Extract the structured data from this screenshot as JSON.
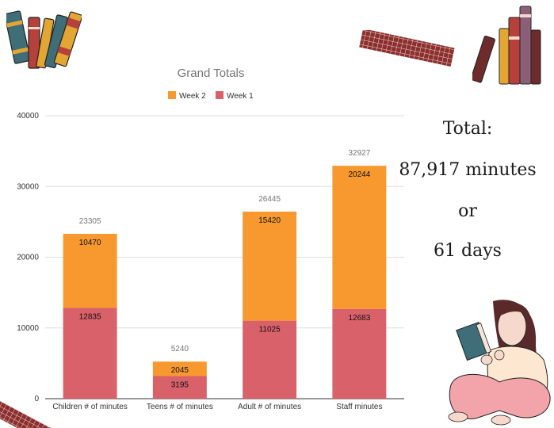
{
  "chart_data": {
    "type": "bar",
    "stacked": true,
    "title": "Grand Totals",
    "categories": [
      "Children # of minutes",
      "Teens # of minutes",
      "Adult # of minutes",
      "Staff minutes"
    ],
    "series": [
      {
        "name": "Week 1",
        "values": [
          12835,
          3195,
          11025,
          12683
        ],
        "color": "#d9616a"
      },
      {
        "name": "Week 2",
        "values": [
          10470,
          2045,
          15420,
          20244
        ],
        "color": "#f7992f"
      }
    ],
    "totals": [
      23305,
      5240,
      26445,
      32927
    ],
    "legend_order": [
      "Week 2",
      "Week 1"
    ],
    "legend_position": "top",
    "ylim": [
      0,
      40000
    ],
    "yticks": [
      0,
      10000,
      20000,
      30000,
      40000
    ],
    "grid": true,
    "xlabel": "",
    "ylabel": ""
  },
  "summary": {
    "line1": "Total:",
    "line2": "87,917 minutes",
    "line3": "or",
    "line4": "61 days"
  },
  "colors": {
    "book_red": "#b5413a",
    "book_teal": "#3f6d78",
    "book_mustard": "#e3a634",
    "book_brown": "#6e2b2b",
    "tape": "#8a2e2e",
    "skin": "#f6d9cc",
    "hair": "#5a2a2a",
    "sweater": "#fde7d0",
    "pants": "#f3a4ab"
  },
  "decorations": [
    "book-stack-icon",
    "book-row-icon",
    "washi-tape-icon",
    "reading-girl-illustration"
  ]
}
